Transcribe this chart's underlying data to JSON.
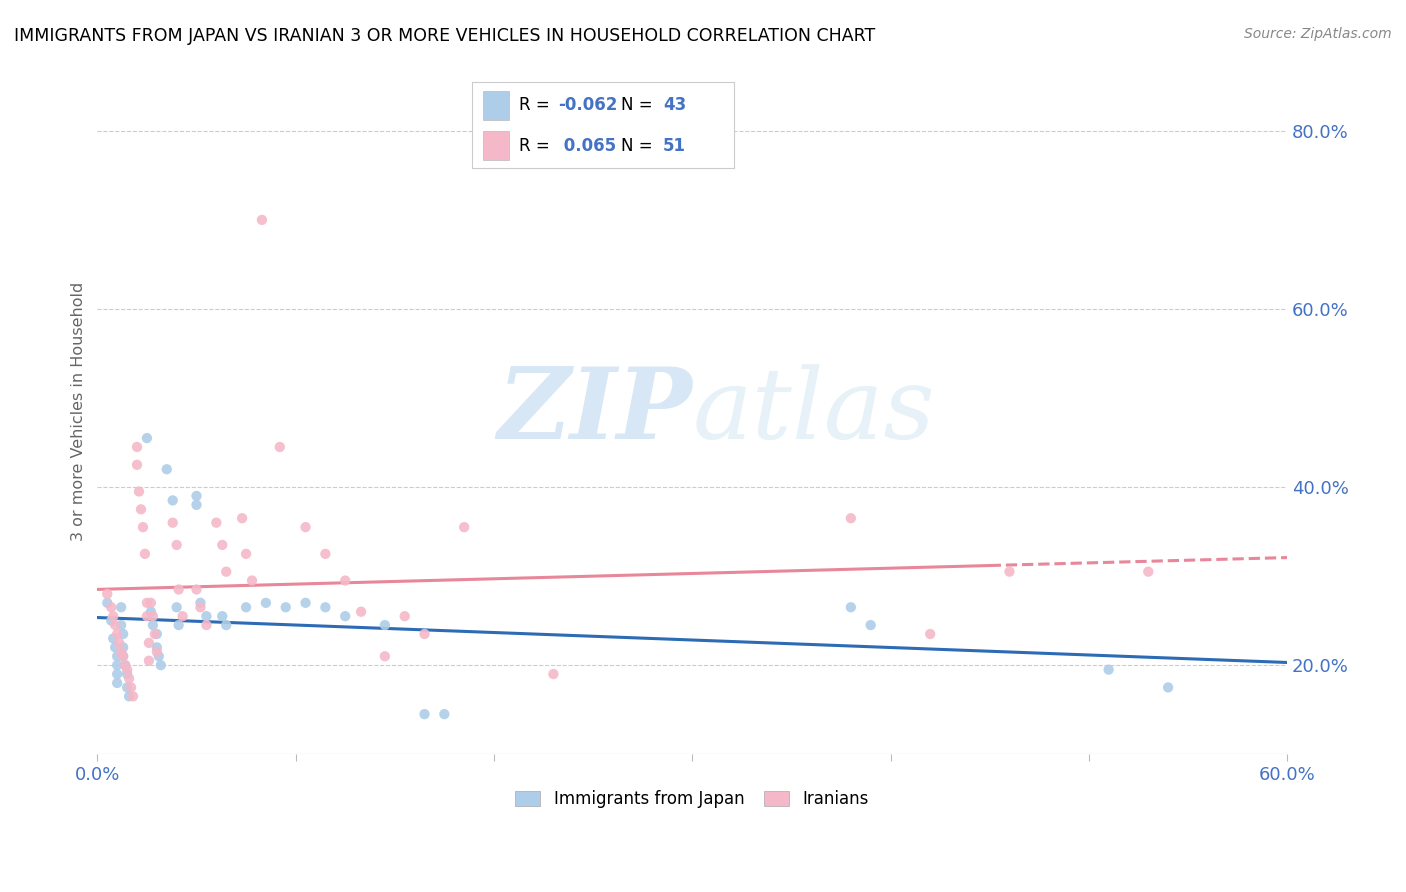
{
  "title": "IMMIGRANTS FROM JAPAN VS IRANIAN 3 OR MORE VEHICLES IN HOUSEHOLD CORRELATION CHART",
  "source": "Source: ZipAtlas.com",
  "ylabel": "3 or more Vehicles in Household",
  "legend_labels": [
    "Immigrants from Japan",
    "Iranians"
  ],
  "xlim": [
    0.0,
    0.6
  ],
  "ylim": [
    0.1,
    0.87
  ],
  "right_yticks": [
    0.2,
    0.4,
    0.6,
    0.8
  ],
  "right_yticklabels": [
    "20.0%",
    "40.0%",
    "60.0%",
    "80.0%"
  ],
  "xticks": [
    0.0,
    0.1,
    0.2,
    0.3,
    0.4,
    0.5,
    0.6
  ],
  "xticklabels": [
    "0.0%",
    "",
    "",
    "",
    "",
    "",
    "60.0%"
  ],
  "japan_color": "#aecde8",
  "iran_color": "#f4b8c8",
  "japan_line_color": "#2d6bb5",
  "iran_line_color": "#e8879a",
  "watermark_zip": "ZIP",
  "watermark_atlas": "atlas",
  "japan_r": -0.062,
  "japan_n": 43,
  "iran_r": 0.065,
  "iran_n": 51,
  "japan_points": [
    [
      0.005,
      0.27
    ],
    [
      0.007,
      0.25
    ],
    [
      0.008,
      0.23
    ],
    [
      0.009,
      0.22
    ],
    [
      0.01,
      0.21
    ],
    [
      0.01,
      0.2
    ],
    [
      0.01,
      0.19
    ],
    [
      0.01,
      0.18
    ],
    [
      0.012,
      0.265
    ],
    [
      0.012,
      0.245
    ],
    [
      0.013,
      0.235
    ],
    [
      0.013,
      0.22
    ],
    [
      0.013,
      0.21
    ],
    [
      0.014,
      0.2
    ],
    [
      0.015,
      0.19
    ],
    [
      0.015,
      0.175
    ],
    [
      0.016,
      0.165
    ],
    [
      0.025,
      0.455
    ],
    [
      0.027,
      0.26
    ],
    [
      0.028,
      0.245
    ],
    [
      0.03,
      0.235
    ],
    [
      0.03,
      0.22
    ],
    [
      0.031,
      0.21
    ],
    [
      0.032,
      0.2
    ],
    [
      0.035,
      0.42
    ],
    [
      0.038,
      0.385
    ],
    [
      0.04,
      0.265
    ],
    [
      0.041,
      0.245
    ],
    [
      0.05,
      0.39
    ],
    [
      0.05,
      0.38
    ],
    [
      0.052,
      0.27
    ],
    [
      0.055,
      0.255
    ],
    [
      0.063,
      0.255
    ],
    [
      0.065,
      0.245
    ],
    [
      0.075,
      0.265
    ],
    [
      0.085,
      0.27
    ],
    [
      0.095,
      0.265
    ],
    [
      0.105,
      0.27
    ],
    [
      0.115,
      0.265
    ],
    [
      0.125,
      0.255
    ],
    [
      0.145,
      0.245
    ],
    [
      0.165,
      0.145
    ],
    [
      0.175,
      0.145
    ]
  ],
  "iran_points": [
    [
      0.005,
      0.28
    ],
    [
      0.007,
      0.265
    ],
    [
      0.008,
      0.255
    ],
    [
      0.009,
      0.245
    ],
    [
      0.01,
      0.235
    ],
    [
      0.011,
      0.225
    ],
    [
      0.012,
      0.215
    ],
    [
      0.013,
      0.21
    ],
    [
      0.014,
      0.2
    ],
    [
      0.015,
      0.195
    ],
    [
      0.016,
      0.185
    ],
    [
      0.017,
      0.175
    ],
    [
      0.018,
      0.165
    ],
    [
      0.02,
      0.445
    ],
    [
      0.02,
      0.425
    ],
    [
      0.021,
      0.395
    ],
    [
      0.022,
      0.375
    ],
    [
      0.023,
      0.355
    ],
    [
      0.024,
      0.325
    ],
    [
      0.025,
      0.27
    ],
    [
      0.025,
      0.255
    ],
    [
      0.026,
      0.225
    ],
    [
      0.026,
      0.205
    ],
    [
      0.027,
      0.27
    ],
    [
      0.028,
      0.255
    ],
    [
      0.029,
      0.235
    ],
    [
      0.03,
      0.215
    ],
    [
      0.038,
      0.36
    ],
    [
      0.04,
      0.335
    ],
    [
      0.041,
      0.285
    ],
    [
      0.043,
      0.255
    ],
    [
      0.05,
      0.285
    ],
    [
      0.052,
      0.265
    ],
    [
      0.055,
      0.245
    ],
    [
      0.06,
      0.36
    ],
    [
      0.063,
      0.335
    ],
    [
      0.065,
      0.305
    ],
    [
      0.073,
      0.365
    ],
    [
      0.075,
      0.325
    ],
    [
      0.078,
      0.295
    ],
    [
      0.083,
      0.7
    ],
    [
      0.092,
      0.445
    ],
    [
      0.105,
      0.355
    ],
    [
      0.115,
      0.325
    ],
    [
      0.125,
      0.295
    ],
    [
      0.133,
      0.26
    ],
    [
      0.145,
      0.21
    ],
    [
      0.155,
      0.255
    ],
    [
      0.165,
      0.235
    ],
    [
      0.185,
      0.355
    ],
    [
      0.23,
      0.19
    ]
  ],
  "iran_extra_points": [
    [
      0.38,
      0.365
    ],
    [
      0.42,
      0.235
    ],
    [
      0.46,
      0.305
    ],
    [
      0.53,
      0.305
    ]
  ],
  "japan_extra_points": [
    [
      0.38,
      0.265
    ],
    [
      0.39,
      0.245
    ],
    [
      0.51,
      0.195
    ],
    [
      0.54,
      0.175
    ]
  ]
}
